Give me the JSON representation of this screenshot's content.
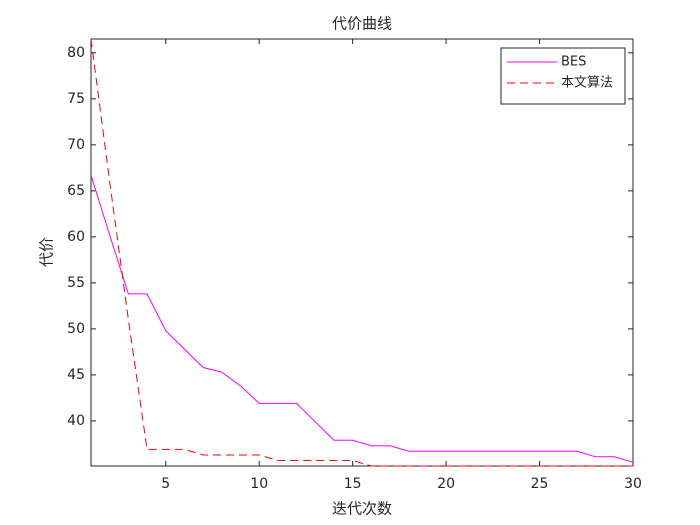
{
  "chart_data": {
    "type": "line",
    "title": "代价曲线",
    "xlabel": "迭代次数",
    "ylabel": "代价",
    "x": [
      1,
      2,
      3,
      4,
      5,
      6,
      7,
      8,
      9,
      10,
      11,
      12,
      13,
      14,
      15,
      16,
      17,
      18,
      19,
      20,
      21,
      22,
      23,
      24,
      25,
      26,
      27,
      28,
      29,
      30
    ],
    "series": [
      {
        "name": "BES",
        "color": "#ff00ff",
        "linestyle": "solid",
        "values": [
          66.7,
          60.2,
          53.8,
          53.8,
          49.8,
          47.8,
          45.8,
          45.3,
          43.8,
          41.9,
          41.9,
          41.9,
          39.9,
          37.9,
          37.9,
          37.3,
          37.3,
          36.7,
          36.7,
          36.7,
          36.7,
          36.7,
          36.7,
          36.7,
          36.7,
          36.7,
          36.7,
          36.1,
          36.1,
          35.5
        ]
      },
      {
        "name": "本文算法",
        "color": "#ff0000",
        "linestyle": "dashed",
        "values": [
          81.5,
          66.0,
          51.0,
          36.9,
          36.9,
          36.9,
          36.3,
          36.3,
          36.3,
          36.3,
          35.7,
          35.7,
          35.7,
          35.7,
          35.7,
          35.1,
          35.1,
          35.1,
          35.1,
          35.1,
          35.1,
          35.1,
          35.1,
          35.1,
          35.1,
          35.1,
          35.1,
          35.1,
          35.1,
          35.1
        ]
      }
    ],
    "xlim": [
      1,
      30
    ],
    "xticks": [
      5,
      10,
      15,
      20,
      25,
      30
    ],
    "ylim": [
      35.1,
      81.5
    ],
    "yticks": [
      40,
      45,
      50,
      55,
      60,
      65,
      70,
      75,
      80
    ],
    "legend": "northeast",
    "grid": false
  }
}
